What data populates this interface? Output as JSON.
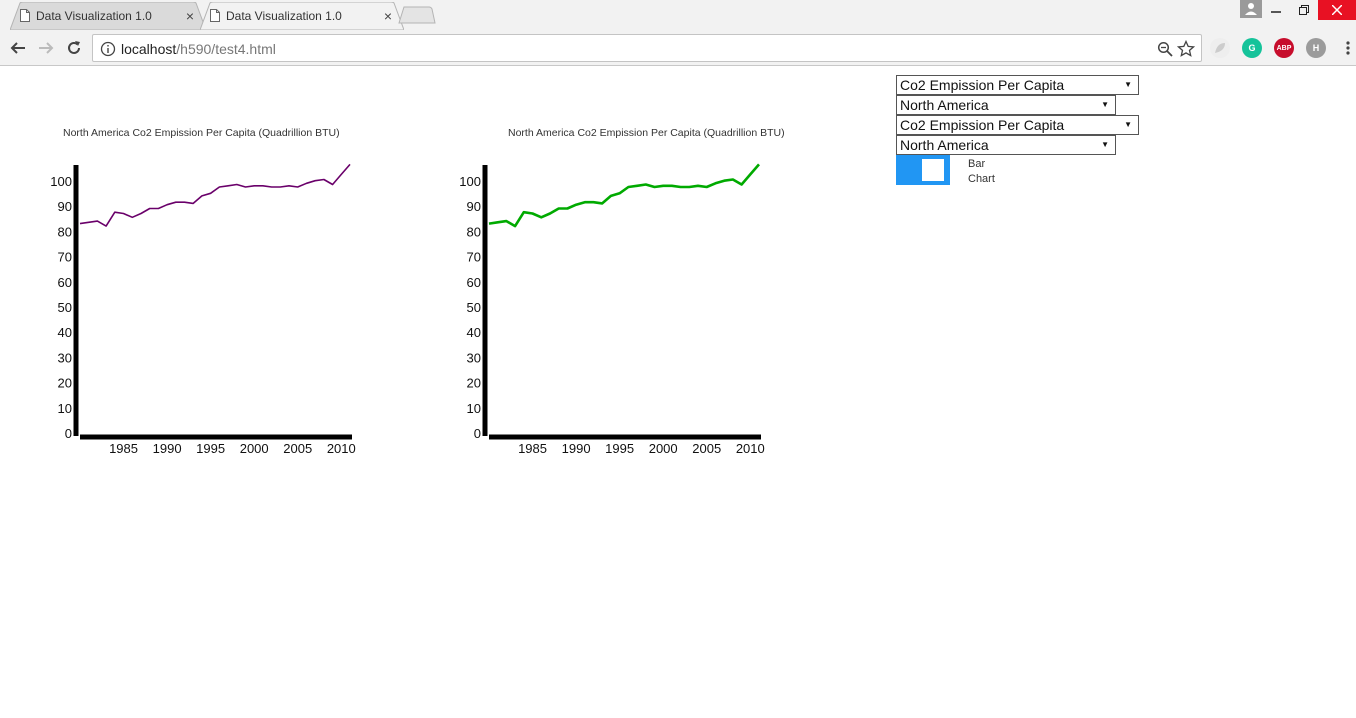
{
  "browser": {
    "tabs": [
      {
        "title": "Data Visualization 1.0",
        "active": false
      },
      {
        "title": "Data Visualization 1.0",
        "active": true
      }
    ],
    "url_host": "localhost",
    "url_path": "/h590/test4.html",
    "extensions": [
      {
        "name": "grammarly-icon",
        "label": "G",
        "color": "#15c39a"
      },
      {
        "name": "adblock-plus-icon",
        "label": "ABP",
        "color": "#c70d2c"
      },
      {
        "name": "h-extension-icon",
        "label": "H",
        "color": "#9b9b9b"
      }
    ]
  },
  "controls": {
    "select1": "Co2 Empission Per Capita",
    "select2": "North America",
    "select3": "Co2 Empission Per Capita",
    "select4": "North America",
    "toggle_label_line1": "Bar",
    "toggle_label_line2": "Chart"
  },
  "chart_data": [
    {
      "type": "line",
      "title": "North America Co2 Empission Per Capita (Quadrillion BTU)",
      "color": "#6a006a",
      "ylim": [
        0,
        100
      ],
      "yticks": [
        0,
        10,
        20,
        30,
        40,
        50,
        60,
        70,
        80,
        90,
        100
      ],
      "xticks": [
        1985,
        1990,
        1995,
        2000,
        2005,
        2010
      ],
      "x": [
        1980,
        1981,
        1982,
        1983,
        1984,
        1985,
        1986,
        1987,
        1988,
        1989,
        1990,
        1991,
        1992,
        1993,
        1994,
        1995,
        1996,
        1997,
        1998,
        1999,
        2000,
        2001,
        2002,
        2003,
        2004,
        2005,
        2006,
        2007,
        2008,
        2009,
        2010,
        2011
      ],
      "values": [
        83.5,
        84,
        84.5,
        82.5,
        88,
        87.5,
        86,
        87.5,
        89.5,
        89.5,
        91,
        92,
        92,
        91.5,
        94.5,
        95.5,
        98,
        98.5,
        99,
        98,
        98.5,
        98.5,
        98,
        98,
        98.5,
        98,
        99.5,
        100.5,
        101,
        99,
        103,
        107
      ]
    },
    {
      "type": "line",
      "title": "North America Co2 Empission Per Capita (Quadrillion BTU)",
      "color": "#00aa00",
      "ylim": [
        0,
        100
      ],
      "yticks": [
        0,
        10,
        20,
        30,
        40,
        50,
        60,
        70,
        80,
        90,
        100
      ],
      "xticks": [
        1985,
        1990,
        1995,
        2000,
        2005,
        2010
      ],
      "x": [
        1980,
        1981,
        1982,
        1983,
        1984,
        1985,
        1986,
        1987,
        1988,
        1989,
        1990,
        1991,
        1992,
        1993,
        1994,
        1995,
        1996,
        1997,
        1998,
        1999,
        2000,
        2001,
        2002,
        2003,
        2004,
        2005,
        2006,
        2007,
        2008,
        2009,
        2010,
        2011
      ],
      "values": [
        83.5,
        84,
        84.5,
        82.5,
        88,
        87.5,
        86,
        87.5,
        89.5,
        89.5,
        91,
        92,
        92,
        91.5,
        94.5,
        95.5,
        98,
        98.5,
        99,
        98,
        98.5,
        98.5,
        98,
        98,
        98.5,
        98,
        99.5,
        100.5,
        101,
        99,
        103,
        107
      ]
    }
  ]
}
